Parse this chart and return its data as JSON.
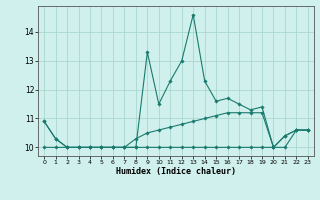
{
  "title": "",
  "xlabel": "Humidex (Indice chaleur)",
  "bg_color": "#cff0ec",
  "grid_color": "#aad8d0",
  "line_color": "#1a7a6e",
  "xlim": [
    -0.5,
    23.5
  ],
  "ylim": [
    9.7,
    14.9
  ],
  "yticks": [
    10,
    11,
    12,
    13,
    14
  ],
  "xticks": [
    0,
    1,
    2,
    3,
    4,
    5,
    6,
    7,
    8,
    9,
    10,
    11,
    12,
    13,
    14,
    15,
    16,
    17,
    18,
    19,
    20,
    21,
    22,
    23
  ],
  "series1": [
    [
      0,
      10.9
    ],
    [
      1,
      10.3
    ],
    [
      2,
      10.0
    ],
    [
      3,
      10.0
    ],
    [
      4,
      10.0
    ],
    [
      5,
      10.0
    ],
    [
      6,
      10.0
    ],
    [
      7,
      10.0
    ],
    [
      8,
      10.0
    ],
    [
      9,
      13.3
    ],
    [
      10,
      11.5
    ],
    [
      11,
      12.3
    ],
    [
      12,
      13.0
    ],
    [
      13,
      14.6
    ],
    [
      14,
      12.3
    ],
    [
      15,
      11.6
    ],
    [
      16,
      11.7
    ],
    [
      17,
      11.5
    ],
    [
      18,
      11.3
    ],
    [
      19,
      11.4
    ],
    [
      20,
      10.0
    ],
    [
      21,
      10.4
    ],
    [
      22,
      10.6
    ],
    [
      23,
      10.6
    ]
  ],
  "series2": [
    [
      0,
      10.9
    ],
    [
      1,
      10.3
    ],
    [
      2,
      10.0
    ],
    [
      3,
      10.0
    ],
    [
      4,
      10.0
    ],
    [
      5,
      10.0
    ],
    [
      6,
      10.0
    ],
    [
      7,
      10.0
    ],
    [
      8,
      10.3
    ],
    [
      9,
      10.5
    ],
    [
      10,
      10.6
    ],
    [
      11,
      10.7
    ],
    [
      12,
      10.8
    ],
    [
      13,
      10.9
    ],
    [
      14,
      11.0
    ],
    [
      15,
      11.1
    ],
    [
      16,
      11.2
    ],
    [
      17,
      11.2
    ],
    [
      18,
      11.2
    ],
    [
      19,
      11.2
    ],
    [
      20,
      10.0
    ],
    [
      21,
      10.4
    ],
    [
      22,
      10.6
    ],
    [
      23,
      10.6
    ]
  ],
  "series3": [
    [
      0,
      10.0
    ],
    [
      1,
      10.0
    ],
    [
      2,
      10.0
    ],
    [
      3,
      10.0
    ],
    [
      4,
      10.0
    ],
    [
      5,
      10.0
    ],
    [
      6,
      10.0
    ],
    [
      7,
      10.0
    ],
    [
      8,
      10.0
    ],
    [
      9,
      10.0
    ],
    [
      10,
      10.0
    ],
    [
      11,
      10.0
    ],
    [
      12,
      10.0
    ],
    [
      13,
      10.0
    ],
    [
      14,
      10.0
    ],
    [
      15,
      10.0
    ],
    [
      16,
      10.0
    ],
    [
      17,
      10.0
    ],
    [
      18,
      10.0
    ],
    [
      19,
      10.0
    ],
    [
      20,
      10.0
    ],
    [
      21,
      10.0
    ],
    [
      22,
      10.6
    ],
    [
      23,
      10.6
    ]
  ]
}
